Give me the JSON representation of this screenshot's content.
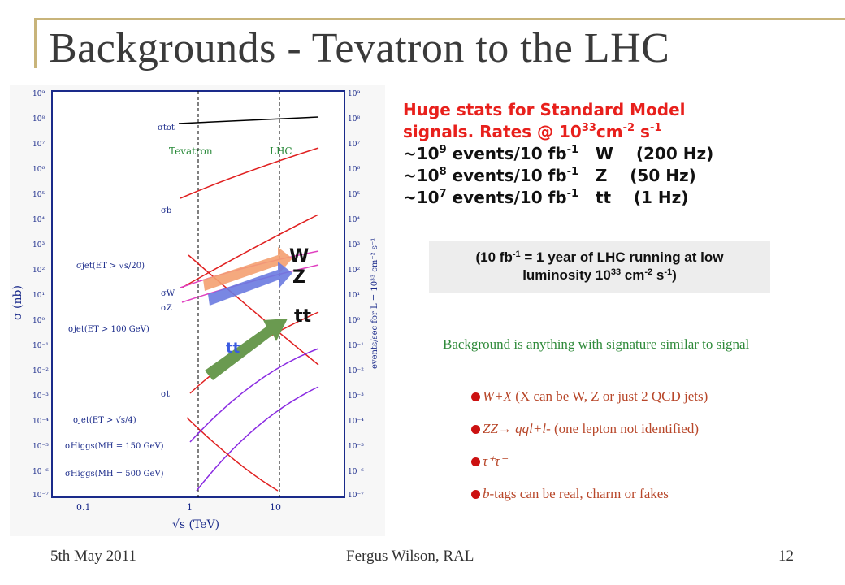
{
  "slide": {
    "title": "Backgrounds - Tevatron to the LHC",
    "footer_date": "5th May 2011",
    "footer_author": "Fergus Wilson, RAL",
    "footer_page": "12"
  },
  "stats": {
    "line1": "Huge stats for Standard Model",
    "line2_pre": "signals. Rates @ 10",
    "line2_exp": "33",
    "line2_mid": "cm",
    "line2_exp2": "-2",
    "line2_s": " s",
    "line2_exp3": "-1",
    "rows": [
      {
        "pre": "~10",
        "exp": "9",
        "mid": " events/10 fb",
        "exp2": "-1",
        "rest": "   W    (200 Hz)"
      },
      {
        "pre": "~10",
        "exp": "8",
        "mid": " events/10 fb",
        "exp2": "-1",
        "rest": "   Z    (50 Hz)"
      },
      {
        "pre": "~10",
        "exp": "7",
        "mid": " events/10 fb",
        "exp2": "-1",
        "rest": "   tt    (1 Hz)"
      }
    ]
  },
  "note": {
    "pre": "(10 fb",
    "exp": "-1",
    "mid": " = 1 year of LHC running at low",
    "line2_pre": "luminosity 10",
    "line2_exp": "33",
    "line2_mid": " cm",
    "line2_exp2": "-2",
    "line2_mid2": " s",
    "line2_exp3": "-1",
    "line2_end": ")"
  },
  "background": {
    "intro": "Background is anything with signature similar to signal",
    "items": [
      {
        "em": "W+X",
        "text": "   (X can be W, Z or just 2 QCD jets)"
      },
      {
        "em": "ZZ→ qql+l-",
        "text": "   (one lepton not identified)"
      },
      {
        "em": "τ⁺τ⁻",
        "text": ""
      },
      {
        "em": "b",
        "text": "-tags can be real, charm or fakes"
      }
    ]
  },
  "plot": {
    "y_axis_label": "σ  (nb)",
    "right_axis_label": "events/sec  for  L = 10³³ cm⁻² s⁻¹",
    "x_axis_label": "√s   (TeV)",
    "x_ticks": [
      "0.1",
      "1",
      "10"
    ],
    "y_ticks": [
      "10⁹",
      "10⁸",
      "10⁷",
      "10⁶",
      "10⁵",
      "10⁴",
      "10³",
      "10²",
      "10¹",
      "10⁰",
      "10⁻¹",
      "10⁻²",
      "10⁻³",
      "10⁻⁴",
      "10⁻⁵",
      "10⁻⁶",
      "10⁻⁷"
    ],
    "labels": {
      "tevatron": "Tevatron",
      "lhc": "LHC",
      "tot": "σtot",
      "b": "σb",
      "jet1": "σjet(ET > √s/20)",
      "W": "σW",
      "Z": "σZ",
      "jet2": "σjet(ET > 100 GeV)",
      "t": "σt",
      "jet3": "σjet(ET > √s/4)",
      "higgs150": "σHiggs(MH = 150 GeV)",
      "higgs500": "σHiggs(MH = 500 GeV)",
      "arrow_W": "W",
      "arrow_Z": "Z",
      "arrow_tt_big": "tt",
      "arrow_tt_small": "tt"
    }
  },
  "colors": {
    "title": "#3a3a3a",
    "accent": "#c8b47a",
    "stats_red": "#e8201c",
    "bg_green": "#2f8a3a",
    "list_red": "#b8472a",
    "curve_red": "#e02020",
    "curve_magenta": "#e040c0",
    "curve_purple": "#8a2be2",
    "arrow_orange": "#f4a070",
    "arrow_blue": "#6a7ae0",
    "arrow_green": "#6a9a50",
    "label_blue": "#1a2a8a"
  }
}
